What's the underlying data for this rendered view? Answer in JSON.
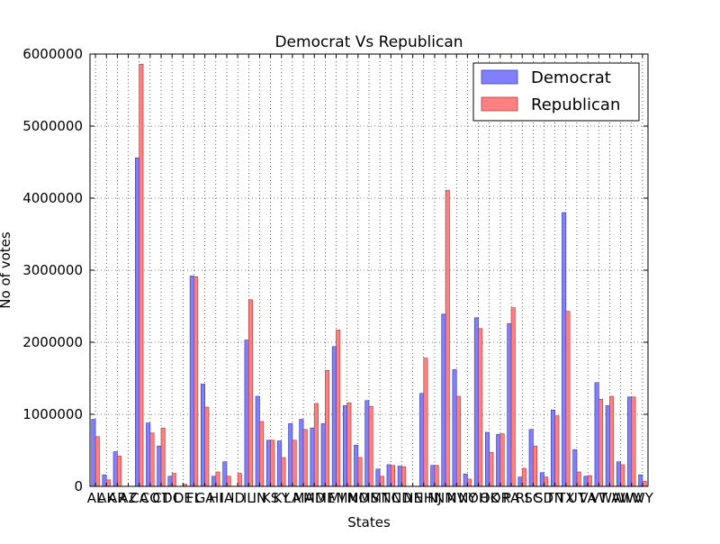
{
  "chart_data": {
    "type": "bar",
    "title": "Democrat Vs Republican",
    "xlabel": "States",
    "ylabel": "No of votes",
    "ylim": [
      0,
      6000000
    ],
    "yticks": [
      "0",
      "1000000",
      "2000000",
      "3000000",
      "4000000",
      "5000000",
      "6000000"
    ],
    "grid": true,
    "legend_position": "top-right",
    "categories": [
      "AL",
      "AK",
      "AR",
      "AZ",
      "CA",
      "CO",
      "CT",
      "DC",
      "DE",
      "FL",
      "GA",
      "HI",
      "IA",
      "ID",
      "IL",
      "IN",
      "KS",
      "KY",
      "LA",
      "MA",
      "MD",
      "ME",
      "MI",
      "MN",
      "MO",
      "MS",
      "MT",
      "NC",
      "ND",
      "NE",
      "NH",
      "NJ",
      "NM",
      "NV",
      "NY",
      "OH",
      "OK",
      "OR",
      "PA",
      "RI",
      "SC",
      "SD",
      "TN",
      "TX",
      "UT",
      "VA",
      "VT",
      "WA",
      "WI",
      "WV",
      "WY"
    ],
    "series": [
      {
        "name": "Democrat",
        "color": "#8080ff",
        "values": [
          930000,
          160000,
          480000,
          0,
          4560000,
          880000,
          560000,
          140000,
          0,
          2920000,
          1420000,
          140000,
          340000,
          0,
          2030000,
          1250000,
          640000,
          630000,
          870000,
          930000,
          810000,
          870000,
          1940000,
          1120000,
          570000,
          1190000,
          240000,
          300000,
          280000,
          0,
          1290000,
          290000,
          2390000,
          1620000,
          170000,
          2340000,
          750000,
          720000,
          2260000,
          130000,
          790000,
          190000,
          1060000,
          3800000,
          510000,
          140000,
          1440000,
          1120000,
          340000,
          1240000,
          160000
        ]
      },
      {
        "name": "Republican",
        "color": "#ff8080",
        "values": [
          690000,
          90000,
          420000,
          0,
          5860000,
          740000,
          810000,
          180000,
          30000,
          2910000,
          1100000,
          200000,
          140000,
          180000,
          2590000,
          900000,
          640000,
          400000,
          640000,
          790000,
          1150000,
          1610000,
          2170000,
          1160000,
          400000,
          1110000,
          140000,
          290000,
          270000,
          0,
          1780000,
          290000,
          4110000,
          1250000,
          100000,
          2190000,
          470000,
          730000,
          2480000,
          250000,
          560000,
          130000,
          980000,
          2430000,
          200000,
          150000,
          1210000,
          1250000,
          300000,
          1240000,
          70000
        ]
      }
    ]
  }
}
